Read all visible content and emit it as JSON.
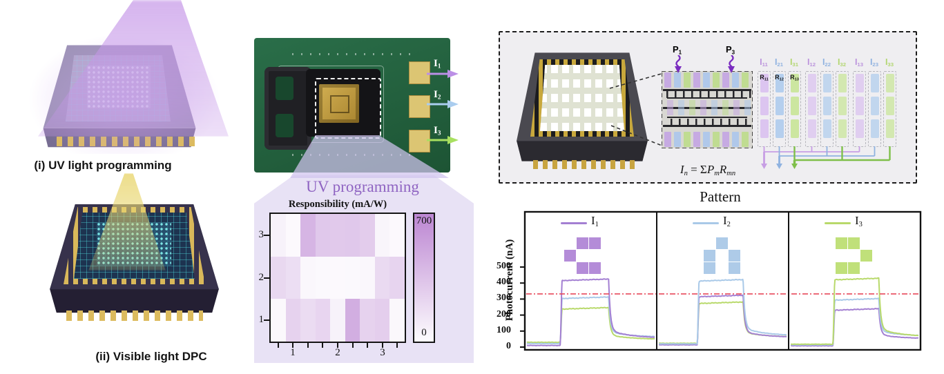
{
  "figure": {
    "left": {
      "uv_label": "(i) UV light programming",
      "vis_label": "(ii) Visible light DPC"
    },
    "middle": {
      "outputs": [
        {
          "main": "I",
          "sub": "1",
          "color": "#bb8fe6"
        },
        {
          "main": "I",
          "sub": "2",
          "color": "#aacdef"
        },
        {
          "main": "I",
          "sub": "3",
          "color": "#a8e060"
        }
      ],
      "panel_title": "UV programming"
    },
    "right": {
      "p_inputs": [
        {
          "main": "P",
          "sub": "1"
        },
        {
          "main": "P",
          "sub": "3"
        }
      ],
      "p_color": "#7a2cc0",
      "matrix": {
        "headers": [
          {
            "main": "I",
            "sub": "11",
            "color": "#bb93dc"
          },
          {
            "main": "I",
            "sub": "21",
            "color": "#8fb2e0"
          },
          {
            "main": "I",
            "sub": "31",
            "color": "#b2d670"
          },
          {
            "main": "I",
            "sub": "12",
            "color": "#bb93dc"
          },
          {
            "main": "I",
            "sub": "22",
            "color": "#8fb2e0"
          },
          {
            "main": "I",
            "sub": "32",
            "color": "#b2d670"
          },
          {
            "main": "I",
            "sub": "13",
            "color": "#bb93dc"
          },
          {
            "main": "I",
            "sub": "23",
            "color": "#8fb2e0"
          },
          {
            "main": "I",
            "sub": "33",
            "color": "#b2d670"
          }
        ],
        "r_labels": [
          {
            "main": "R",
            "sub": "11"
          },
          {
            "main": "R",
            "sub": "12"
          },
          {
            "main": "R",
            "sub": "13"
          }
        ],
        "cell_colors": [
          "#dcc5f0",
          "#b5cfee",
          "#cce6a0"
        ],
        "outputs": [
          {
            "main": "I",
            "sub": "1",
            "color": "#c79ee4"
          },
          {
            "main": "I",
            "sub": "2",
            "color": "#8fb2e0"
          },
          {
            "main": "I",
            "sub": "3",
            "color": "#7fbf4a"
          }
        ]
      },
      "formula": {
        "i": "I",
        "i_sub": "n",
        "eq": " = ",
        "sum": "Σ",
        "p": "P",
        "p_sub": "m",
        "r": "R",
        "r_sub": "mn"
      },
      "pattern_title": "Pattern"
    }
  },
  "chart_data": [
    {
      "type": "heatmap",
      "title": "Responsibility (mA/W)",
      "row_labels": [
        "3",
        "2",
        "1"
      ],
      "col_labels": [
        "1",
        "2",
        "3"
      ],
      "n_cols": 9,
      "vmin": 0,
      "vmax": 700,
      "values": [
        [
          60,
          15,
          420,
          310,
          305,
          310,
          285,
          40,
          15
        ],
        [
          215,
          180,
          30,
          20,
          15,
          20,
          30,
          200,
          240
        ],
        [
          25,
          250,
          190,
          230,
          60,
          460,
          250,
          270,
          25
        ]
      ],
      "colorbar": {
        "top_label": "700",
        "bottom_label": "0",
        "max_color": "#bc86d2",
        "min_color": "#fdfcfe"
      }
    },
    {
      "type": "line",
      "title": "Pattern",
      "ylabel": "Photocurrent (nA)",
      "ytick_values": [
        0,
        100,
        200,
        300,
        400,
        500
      ],
      "ylim": [
        0,
        845
      ],
      "threshold": {
        "value": 332,
        "color": "#e8485a"
      },
      "panels": [
        {
          "legend": {
            "main": "I",
            "sub": "1"
          },
          "legend_color": "#a37fd2",
          "pattern_grid": [
            [
              0,
              1,
              1
            ],
            [
              1,
              0,
              0
            ],
            [
              0,
              1,
              1
            ]
          ],
          "pattern_color": "#b48cd8",
          "pulse": {
            "rise": 0.26,
            "fall": 0.64
          },
          "series": [
            {
              "name": "I3",
              "color": "#b8d96a",
              "base": 30,
              "peak": 237,
              "tail": 48
            },
            {
              "name": "I2",
              "color": "#a9c9e8",
              "base": 22,
              "peak": 303,
              "tail": 62
            },
            {
              "name": "I1",
              "color": "#a37fd2",
              "base": 10,
              "peak": 415,
              "tail": 55
            }
          ]
        },
        {
          "legend": {
            "main": "I",
            "sub": "2"
          },
          "legend_color": "#a9c9e8",
          "pattern_grid": [
            [
              0,
              1,
              0
            ],
            [
              1,
              0,
              1
            ],
            [
              1,
              0,
              1
            ]
          ],
          "pattern_color": "#aecbe8",
          "pulse": {
            "rise": 0.3,
            "fall": 0.66
          },
          "series": [
            {
              "name": "I3",
              "color": "#b8d96a",
              "base": 24,
              "peak": 272,
              "tail": 62
            },
            {
              "name": "I1",
              "color": "#a37fd2",
              "base": 14,
              "peak": 314,
              "tail": 60
            },
            {
              "name": "I2",
              "color": "#a9c9e8",
              "base": 20,
              "peak": 412,
              "tail": 70
            }
          ]
        },
        {
          "legend": {
            "main": "I",
            "sub": "3"
          },
          "legend_color": "#b8d96a",
          "pattern_grid": [
            [
              1,
              1,
              0
            ],
            [
              0,
              0,
              1
            ],
            [
              1,
              1,
              0
            ]
          ],
          "pattern_color": "#c0e07a",
          "pulse": {
            "rise": 0.33,
            "fall": 0.69
          },
          "series": [
            {
              "name": "I1",
              "color": "#a37fd2",
              "base": 8,
              "peak": 230,
              "tail": 52
            },
            {
              "name": "I2",
              "color": "#a9c9e8",
              "base": 14,
              "peak": 293,
              "tail": 68
            },
            {
              "name": "I3",
              "color": "#b8d96a",
              "base": 18,
              "peak": 420,
              "tail": 64
            }
          ]
        }
      ]
    }
  ]
}
